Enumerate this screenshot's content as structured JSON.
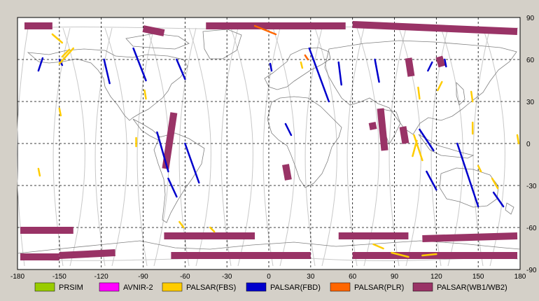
{
  "map": {
    "x_ticks": [
      "-180",
      "-150",
      "-120",
      "-90",
      "-60",
      "-30",
      "0",
      "30",
      "60",
      "90",
      "120",
      "150",
      "180"
    ],
    "y_ticks": [
      "90",
      "60",
      "30",
      "0",
      "-30",
      "-60",
      "-90"
    ],
    "lon_range": [
      -180,
      180
    ],
    "lat_range": [
      -90,
      90
    ],
    "grid": "dashed"
  },
  "colors": {
    "prsim": "#99cc00",
    "avnir2": "#ff00ff",
    "palsar_fbs": "#ffcc00",
    "palsar_fbd": "#0000cc",
    "palsar_plr": "#ff6600",
    "palsar_wb": "#993366",
    "orbit": "#c8c8c8",
    "coast": "#808080"
  },
  "legend": [
    {
      "label": "PRSIM",
      "color": "#99cc00"
    },
    {
      "label": "AVNIR-2",
      "color": "#ff00ff"
    },
    {
      "label": "PALSAR(FBS)",
      "color": "#ffcc00"
    },
    {
      "label": "PALSAR(FBD)",
      "color": "#0000cc"
    },
    {
      "label": "PALSAR(PLR)",
      "color": "#ff6600"
    },
    {
      "label": "PALSAR(WB1/WB2)",
      "color": "#993366"
    }
  ],
  "swaths": {
    "wb": [
      {
        "lon1": -175,
        "lat1": 84,
        "lon2": -155,
        "lat2": 84
      },
      {
        "lon1": -90,
        "lat1": 82,
        "lon2": -75,
        "lat2": 79
      },
      {
        "lon1": -45,
        "lat1": 84,
        "lon2": 55,
        "lat2": 84
      },
      {
        "lon1": 60,
        "lat1": 85,
        "lon2": 178,
        "lat2": 80
      },
      {
        "lon1": -68,
        "lat1": 22,
        "lon2": -74,
        "lat2": -18
      },
      {
        "lon1": 12,
        "lat1": -15,
        "lon2": 14,
        "lat2": -26
      },
      {
        "lon1": 80,
        "lat1": 25,
        "lon2": 83,
        "lat2": -5
      },
      {
        "lon1": 74,
        "lat1": 15,
        "lon2": 75,
        "lat2": 10
      },
      {
        "lon1": 100,
        "lat1": 61,
        "lon2": 102,
        "lat2": 48
      },
      {
        "lon1": 122,
        "lat1": 62,
        "lon2": 124,
        "lat2": 55
      },
      {
        "lon1": 96,
        "lat1": 12,
        "lon2": 98,
        "lat2": 0
      },
      {
        "lon1": -178,
        "lat1": -62,
        "lon2": -140,
        "lat2": -62
      },
      {
        "lon1": -75,
        "lat1": -66,
        "lon2": -10,
        "lat2": -66
      },
      {
        "lon1": 50,
        "lat1": -66,
        "lon2": 100,
        "lat2": -66
      },
      {
        "lon1": 110,
        "lat1": -68,
        "lon2": 178,
        "lat2": -66
      },
      {
        "lon1": -178,
        "lat1": -81,
        "lon2": -150,
        "lat2": -81
      },
      {
        "lon1": -150,
        "lat1": -80,
        "lon2": -110,
        "lat2": -78
      },
      {
        "lon1": -70,
        "lat1": -80,
        "lon2": 30,
        "lat2": -80
      },
      {
        "lon1": 60,
        "lat1": -80,
        "lon2": 178,
        "lat2": -80
      }
    ],
    "fbd": [
      {
        "lon1": -162,
        "lat1": 61,
        "lon2": -165,
        "lat2": 52
      },
      {
        "lon1": -97,
        "lat1": 68,
        "lon2": -88,
        "lat2": 45
      },
      {
        "lon1": -66,
        "lat1": 60,
        "lon2": -60,
        "lat2": 46
      },
      {
        "lon1": -118,
        "lat1": 60,
        "lon2": -114,
        "lat2": 43
      },
      {
        "lon1": 29,
        "lat1": 68,
        "lon2": 43,
        "lat2": 30
      },
      {
        "lon1": 50,
        "lat1": 58,
        "lon2": 52,
        "lat2": 42
      },
      {
        "lon1": 76,
        "lat1": 60,
        "lon2": 79,
        "lat2": 44
      },
      {
        "lon1": 117,
        "lat1": 58,
        "lon2": 114,
        "lat2": 52
      },
      {
        "lon1": 12,
        "lat1": 14,
        "lon2": 16,
        "lat2": 6
      },
      {
        "lon1": -80,
        "lat1": 8,
        "lon2": -72,
        "lat2": -20
      },
      {
        "lon1": -60,
        "lat1": 0,
        "lon2": -50,
        "lat2": -28
      },
      {
        "lon1": -72,
        "lat1": -25,
        "lon2": -66,
        "lat2": -38
      },
      {
        "lon1": -150,
        "lat1": 60,
        "lon2": -148,
        "lat2": 56
      },
      {
        "lon1": 108,
        "lat1": 10,
        "lon2": 118,
        "lat2": -5
      },
      {
        "lon1": 135,
        "lat1": 0,
        "lon2": 150,
        "lat2": -45
      },
      {
        "lon1": 113,
        "lat1": -20,
        "lon2": 120,
        "lat2": -33
      },
      {
        "lon1": 161,
        "lat1": -35,
        "lon2": 168,
        "lat2": -45
      },
      {
        "lon1": 1,
        "lat1": 57,
        "lon2": 2,
        "lat2": 52
      },
      {
        "lon1": 126,
        "lat1": 60,
        "lon2": 127,
        "lat2": 55
      }
    ],
    "fbs": [
      {
        "lon1": -155,
        "lat1": 78,
        "lon2": -148,
        "lat2": 72
      },
      {
        "lon1": -140,
        "lat1": 68,
        "lon2": -150,
        "lat2": 57
      },
      {
        "lon1": -143,
        "lat1": 67,
        "lon2": -148,
        "lat2": 62
      },
      {
        "lon1": -150,
        "lat1": 25,
        "lon2": -149,
        "lat2": 20
      },
      {
        "lon1": -95,
        "lat1": 4,
        "lon2": -95,
        "lat2": -2
      },
      {
        "lon1": -89,
        "lat1": 38,
        "lon2": -88,
        "lat2": 32
      },
      {
        "lon1": -165,
        "lat1": -18,
        "lon2": -164,
        "lat2": -23
      },
      {
        "lon1": -64,
        "lat1": -56,
        "lon2": -61,
        "lat2": -60
      },
      {
        "lon1": -42,
        "lat1": -60,
        "lon2": -39,
        "lat2": -63
      },
      {
        "lon1": 107,
        "lat1": 40,
        "lon2": 108,
        "lat2": 32
      },
      {
        "lon1": 104,
        "lat1": 6,
        "lon2": 110,
        "lat2": -12
      },
      {
        "lon1": 106,
        "lat1": 2,
        "lon2": 103,
        "lat2": -9
      },
      {
        "lon1": 124,
        "lat1": 44,
        "lon2": 121,
        "lat2": 38
      },
      {
        "lon1": 146,
        "lat1": 15,
        "lon2": 146,
        "lat2": 7
      },
      {
        "lon1": 160,
        "lat1": -25,
        "lon2": 164,
        "lat2": -32
      },
      {
        "lon1": 178,
        "lat1": 6,
        "lon2": 179,
        "lat2": 0
      },
      {
        "lon1": 88,
        "lat1": -78,
        "lon2": 100,
        "lat2": -81
      },
      {
        "lon1": 75,
        "lat1": -72,
        "lon2": 82,
        "lat2": -75
      },
      {
        "lon1": 110,
        "lat1": -80,
        "lon2": 120,
        "lat2": -79
      },
      {
        "lon1": 150,
        "lat1": -16,
        "lon2": 152,
        "lat2": -20
      },
      {
        "lon1": 23,
        "lat1": 58,
        "lon2": 24,
        "lat2": 54
      },
      {
        "lon1": 145,
        "lat1": 37,
        "lon2": 146,
        "lat2": 30
      }
    ],
    "plr": [
      {
        "lon1": -10,
        "lat1": 84,
        "lon2": 5,
        "lat2": 78
      },
      {
        "lon1": 26,
        "lat1": 63,
        "lon2": 28,
        "lat2": 60
      }
    ]
  }
}
